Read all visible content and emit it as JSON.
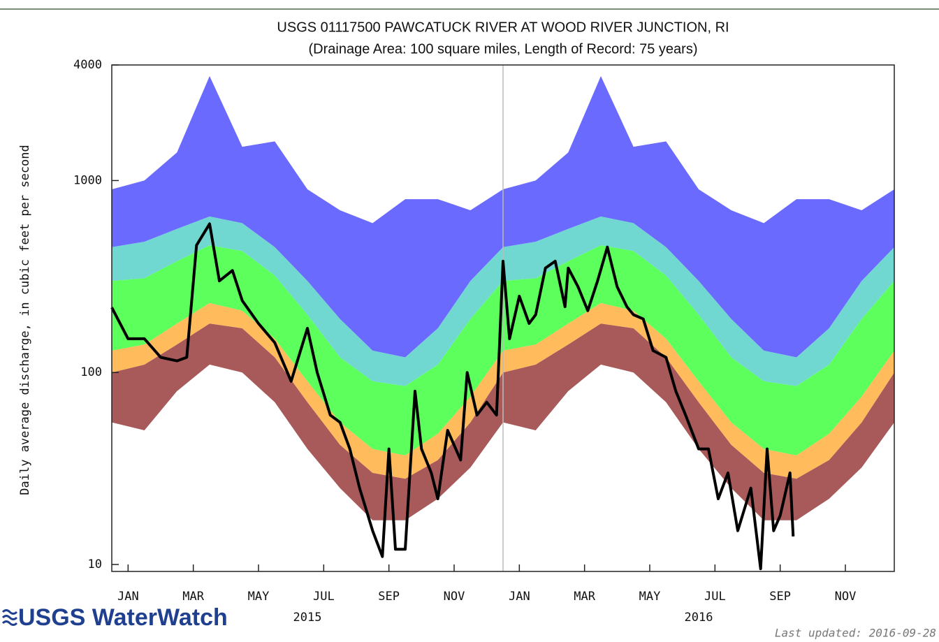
{
  "chart_data": {
    "type": "percentile_hydrograph",
    "title": "USGS 01117500 PAWCATUCK RIVER AT WOOD RIVER JUNCTION, RI",
    "subtitle": "(Drainage Area: 100 square miles, Length of Record: 75 years)",
    "y_label": "Daily average discharge, in cubic feet per second",
    "log_scale": true,
    "ylim": [
      9.2,
      4000
    ],
    "yticks": [
      10,
      100,
      1000,
      4000
    ],
    "xlim": [
      0,
      24
    ],
    "xticks": [
      {
        "value": 0.5,
        "label": "JAN"
      },
      {
        "value": 2.5,
        "label": "MAR"
      },
      {
        "value": 4.5,
        "label": "MAY"
      },
      {
        "value": 6.5,
        "label": "JUL"
      },
      {
        "value": 8.5,
        "label": "SEP"
      },
      {
        "value": 10.5,
        "label": "NOV"
      },
      {
        "value": 12.5,
        "label": "JAN"
      },
      {
        "value": 14.5,
        "label": "MAR"
      },
      {
        "value": 16.5,
        "label": "MAY"
      },
      {
        "value": 18.5,
        "label": "JUL"
      },
      {
        "value": 20.5,
        "label": "SEP"
      },
      {
        "value": 22.5,
        "label": "NOV"
      }
    ],
    "x_groups": [
      {
        "value": 6,
        "label": "2015"
      },
      {
        "value": 18,
        "label": "2016"
      }
    ],
    "vlines": [
      12
    ],
    "x": [
      0,
      1,
      2,
      3,
      4,
      5,
      6,
      7,
      8,
      9,
      10,
      11,
      12,
      13,
      14,
      15,
      16,
      17,
      18,
      19,
      20,
      21,
      22,
      23,
      24
    ],
    "floor": [
      55,
      50,
      80,
      110,
      100,
      70,
      40,
      25,
      17,
      17,
      22,
      32,
      55,
      50,
      80,
      110,
      100,
      70,
      40,
      25,
      17,
      17,
      22,
      32,
      55
    ],
    "series": [
      {
        "color": "#a85a5a",
        "values": [
          100,
          110,
          140,
          180,
          170,
          120,
          70,
          42,
          30,
          28,
          35,
          55,
          100,
          110,
          140,
          180,
          170,
          120,
          70,
          42,
          30,
          28,
          35,
          55,
          100
        ]
      },
      {
        "color": "#ffbb5c",
        "values": [
          130,
          140,
          180,
          230,
          210,
          150,
          90,
          55,
          40,
          37,
          48,
          75,
          130,
          140,
          180,
          230,
          210,
          150,
          90,
          55,
          40,
          37,
          48,
          75,
          130
        ]
      },
      {
        "color": "#5cff5c",
        "values": [
          300,
          310,
          380,
          460,
          430,
          320,
          200,
          120,
          90,
          85,
          110,
          190,
          300,
          310,
          380,
          460,
          430,
          320,
          200,
          120,
          90,
          85,
          110,
          190,
          300
        ]
      },
      {
        "color": "#70d8d0",
        "values": [
          450,
          480,
          560,
          650,
          600,
          450,
          300,
          190,
          130,
          120,
          170,
          300,
          450,
          480,
          560,
          650,
          600,
          450,
          300,
          190,
          130,
          120,
          170,
          300,
          450
        ]
      },
      {
        "color": "#6a6aff",
        "values": [
          900,
          1000,
          1400,
          3500,
          1500,
          1600,
          900,
          700,
          600,
          800,
          800,
          700,
          900,
          1000,
          1400,
          3500,
          1500,
          1600,
          900,
          700,
          600,
          800,
          800,
          700,
          900
        ]
      }
    ],
    "observed": {
      "color": "#000000",
      "x": [
        0,
        0.5,
        1,
        1.5,
        2,
        2.3,
        2.6,
        3,
        3.3,
        3.7,
        4,
        4.5,
        5,
        5.5,
        6,
        6.3,
        6.7,
        7,
        7.3,
        7.6,
        8,
        8.3,
        8.5,
        8.7,
        9,
        9.3,
        9.5,
        9.8,
        10,
        10.3,
        10.7,
        10.9,
        11.2,
        11.5,
        11.8,
        12,
        12.2,
        12.5,
        12.8,
        13,
        13.3,
        13.6,
        13.9,
        14,
        14.3,
        14.6,
        14.9,
        15.2,
        15.5,
        15.8,
        16,
        16.3,
        16.6,
        17,
        17.3,
        17.6,
        18,
        18.3,
        18.6,
        18.9,
        19.2,
        19.6,
        19.9,
        20.1,
        20.3,
        20.5,
        20.8,
        20.9
      ],
      "values": [
        218,
        150,
        150,
        120,
        115,
        120,
        460,
        595,
        300,
        340,
        237,
        180,
        143,
        90,
        170,
        100,
        60,
        55,
        40,
        25,
        15,
        11,
        40,
        12,
        12,
        80,
        40,
        30,
        22,
        50,
        35,
        100,
        60,
        70,
        60,
        380,
        150,
        250,
        180,
        200,
        350,
        380,
        220,
        350,
        280,
        210,
        300,
        450,
        280,
        220,
        200,
        190,
        130,
        120,
        80,
        60,
        40,
        40,
        22,
        30,
        15,
        25,
        9.5,
        40,
        15,
        18,
        30,
        14
      ]
    },
    "logo": "USGS WaterWatch",
    "footer": "Last updated: 2016-09-28"
  }
}
